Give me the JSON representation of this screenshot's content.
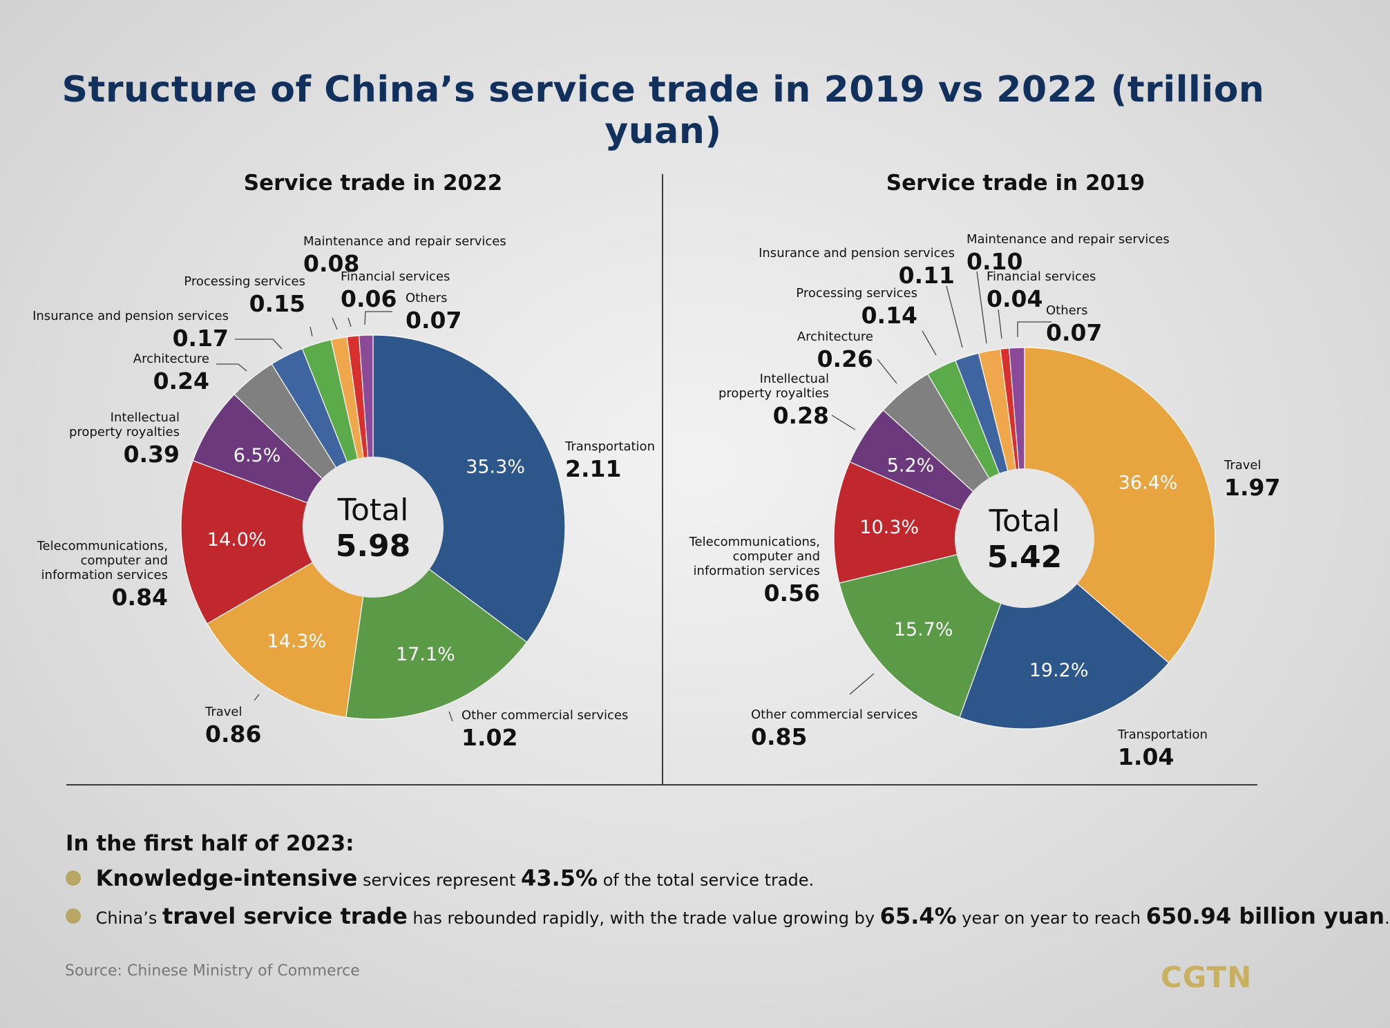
{
  "title": "Structure of China’s service trade in 2019 vs 2022 (trillion yuan)",
  "colors": {
    "Transportation": "#2d568b",
    "Other commercial services": "#5b9a46",
    "Travel": "#e8a43e",
    "Telecommunications, computer and information services": "#c1282e",
    "Intellectual property royalties": "#6c3a7c",
    "Architecture": "#808080",
    "Insurance and pension services": "#3e65a0",
    "Processing services": "#5cab4a",
    "Maintenance and repair services": "#f0a64a",
    "Financial services": "#d7302f",
    "Others": "#8a4a98"
  },
  "chart_data": [
    {
      "type": "pie",
      "title": "Service trade in 2022",
      "center_label": "Total",
      "center_value": "5.98",
      "unit": "trillion yuan",
      "slices": [
        {
          "name": "Transportation",
          "label_lines": [
            "Transportation"
          ],
          "value": 2.11,
          "value_text": "2.11",
          "pct_text": "35.3%"
        },
        {
          "name": "Other commercial services",
          "label_lines": [
            "Other commercial services"
          ],
          "value": 1.02,
          "value_text": "1.02",
          "pct_text": "17.1%"
        },
        {
          "name": "Travel",
          "label_lines": [
            "Travel"
          ],
          "value": 0.86,
          "value_text": "0.86",
          "pct_text": "14.3%"
        },
        {
          "name": "Telecommunications, computer and information services",
          "label_lines": [
            "Telecommunications,",
            "computer and",
            "information services"
          ],
          "value": 0.84,
          "value_text": "0.84",
          "pct_text": "14.0%"
        },
        {
          "name": "Intellectual property royalties",
          "label_lines": [
            "Intellectual",
            "property royalties"
          ],
          "value": 0.39,
          "value_text": "0.39",
          "pct_text": "6.5%"
        },
        {
          "name": "Architecture",
          "label_lines": [
            "Architecture"
          ],
          "value": 0.24,
          "value_text": "0.24",
          "pct_text": ""
        },
        {
          "name": "Insurance and pension services",
          "label_lines": [
            "Insurance and pension services"
          ],
          "value": 0.17,
          "value_text": "0.17",
          "pct_text": ""
        },
        {
          "name": "Processing services",
          "label_lines": [
            "Processing services"
          ],
          "value": 0.15,
          "value_text": "0.15",
          "pct_text": ""
        },
        {
          "name": "Maintenance and repair services",
          "label_lines": [
            "Maintenance and repair services"
          ],
          "value": 0.08,
          "value_text": "0.08",
          "pct_text": ""
        },
        {
          "name": "Financial services",
          "label_lines": [
            "Financial services"
          ],
          "value": 0.06,
          "value_text": "0.06",
          "pct_text": ""
        },
        {
          "name": "Others",
          "label_lines": [
            "Others"
          ],
          "value": 0.07,
          "value_text": "0.07",
          "pct_text": ""
        }
      ]
    },
    {
      "type": "pie",
      "title": "Service trade in 2019",
      "center_label": "Total",
      "center_value": "5.42",
      "unit": "trillion yuan",
      "slices": [
        {
          "name": "Travel",
          "label_lines": [
            "Travel"
          ],
          "value": 1.97,
          "value_text": "1.97",
          "pct_text": "36.4%"
        },
        {
          "name": "Transportation",
          "label_lines": [
            "Transportation"
          ],
          "value": 1.04,
          "value_text": "1.04",
          "pct_text": "19.2%"
        },
        {
          "name": "Other commercial services",
          "label_lines": [
            "Other commercial services"
          ],
          "value": 0.85,
          "value_text": "0.85",
          "pct_text": "15.7%"
        },
        {
          "name": "Telecommunications, computer and information services",
          "label_lines": [
            "Telecommunications,",
            "computer and",
            "information services"
          ],
          "value": 0.56,
          "value_text": "0.56",
          "pct_text": "10.3%"
        },
        {
          "name": "Intellectual property royalties",
          "label_lines": [
            "Intellectual",
            "property royalties"
          ],
          "value": 0.28,
          "value_text": "0.28",
          "pct_text": "5.2%"
        },
        {
          "name": "Architecture",
          "label_lines": [
            "Architecture"
          ],
          "value": 0.26,
          "value_text": "0.26",
          "pct_text": ""
        },
        {
          "name": "Processing services",
          "label_lines": [
            "Processing services"
          ],
          "value": 0.14,
          "value_text": "0.14",
          "pct_text": ""
        },
        {
          "name": "Insurance and pension services",
          "label_lines": [
            "Insurance and pension services"
          ],
          "value": 0.11,
          "value_text": "0.11",
          "pct_text": ""
        },
        {
          "name": "Maintenance and repair services",
          "label_lines": [
            "Maintenance and repair services"
          ],
          "value": 0.1,
          "value_text": "0.10",
          "pct_text": ""
        },
        {
          "name": "Financial services",
          "label_lines": [
            "Financial services"
          ],
          "value": 0.04,
          "value_text": "0.04",
          "pct_text": ""
        },
        {
          "name": "Others",
          "label_lines": [
            "Others"
          ],
          "value": 0.07,
          "value_text": "0.07",
          "pct_text": ""
        }
      ]
    }
  ],
  "footer": {
    "heading": "In the first half of 2023:",
    "bullet1": {
      "b1": "Knowledge-intensive",
      "t1": " services represent ",
      "b2": "43.5%",
      "t2": " of the total service trade."
    },
    "bullet2": {
      "t0": "China’s ",
      "b1": "travel service trade",
      "t1": " has rebounded rapidly, with the trade value growing by ",
      "b2": "65.4%",
      "t2": " year on year to reach ",
      "b3": "650.94 billion yuan",
      "t3": "."
    },
    "source": "Source: Chinese Ministry of Commerce",
    "logo": "CGTN"
  }
}
